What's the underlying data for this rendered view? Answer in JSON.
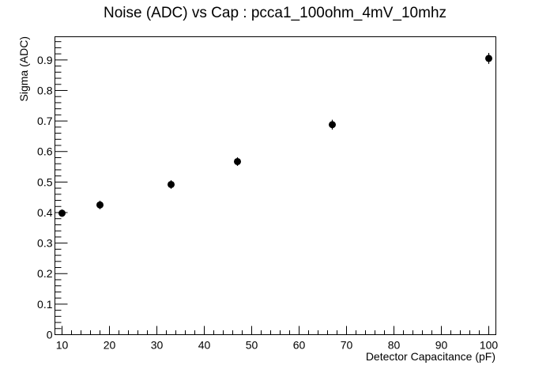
{
  "chart_data": {
    "type": "scatter",
    "title": "Noise (ADC) vs Cap : pcca1_100ohm_4mV_10mhz",
    "xlabel": "Detector Capacitance (pF)",
    "ylabel": "Sigma (ADC)",
    "xlim": [
      8.5,
      101.5
    ],
    "ylim": [
      0,
      0.976
    ],
    "grid": false,
    "x_ticks": [
      "10",
      "20",
      "30",
      "40",
      "50",
      "60",
      "70",
      "80",
      "90",
      "100"
    ],
    "y_ticks": [
      "0",
      "0.1",
      "0.2",
      "0.3",
      "0.4",
      "0.5",
      "0.6",
      "0.7",
      "0.8",
      "0.9"
    ],
    "points": [
      {
        "x": 10,
        "y": 0.398,
        "err": 0.012
      },
      {
        "x": 18,
        "y": 0.425,
        "err": 0.014
      },
      {
        "x": 33,
        "y": 0.492,
        "err": 0.014
      },
      {
        "x": 47,
        "y": 0.567,
        "err": 0.014
      },
      {
        "x": 67,
        "y": 0.688,
        "err": 0.016
      },
      {
        "x": 100,
        "y": 0.905,
        "err": 0.018
      }
    ]
  }
}
